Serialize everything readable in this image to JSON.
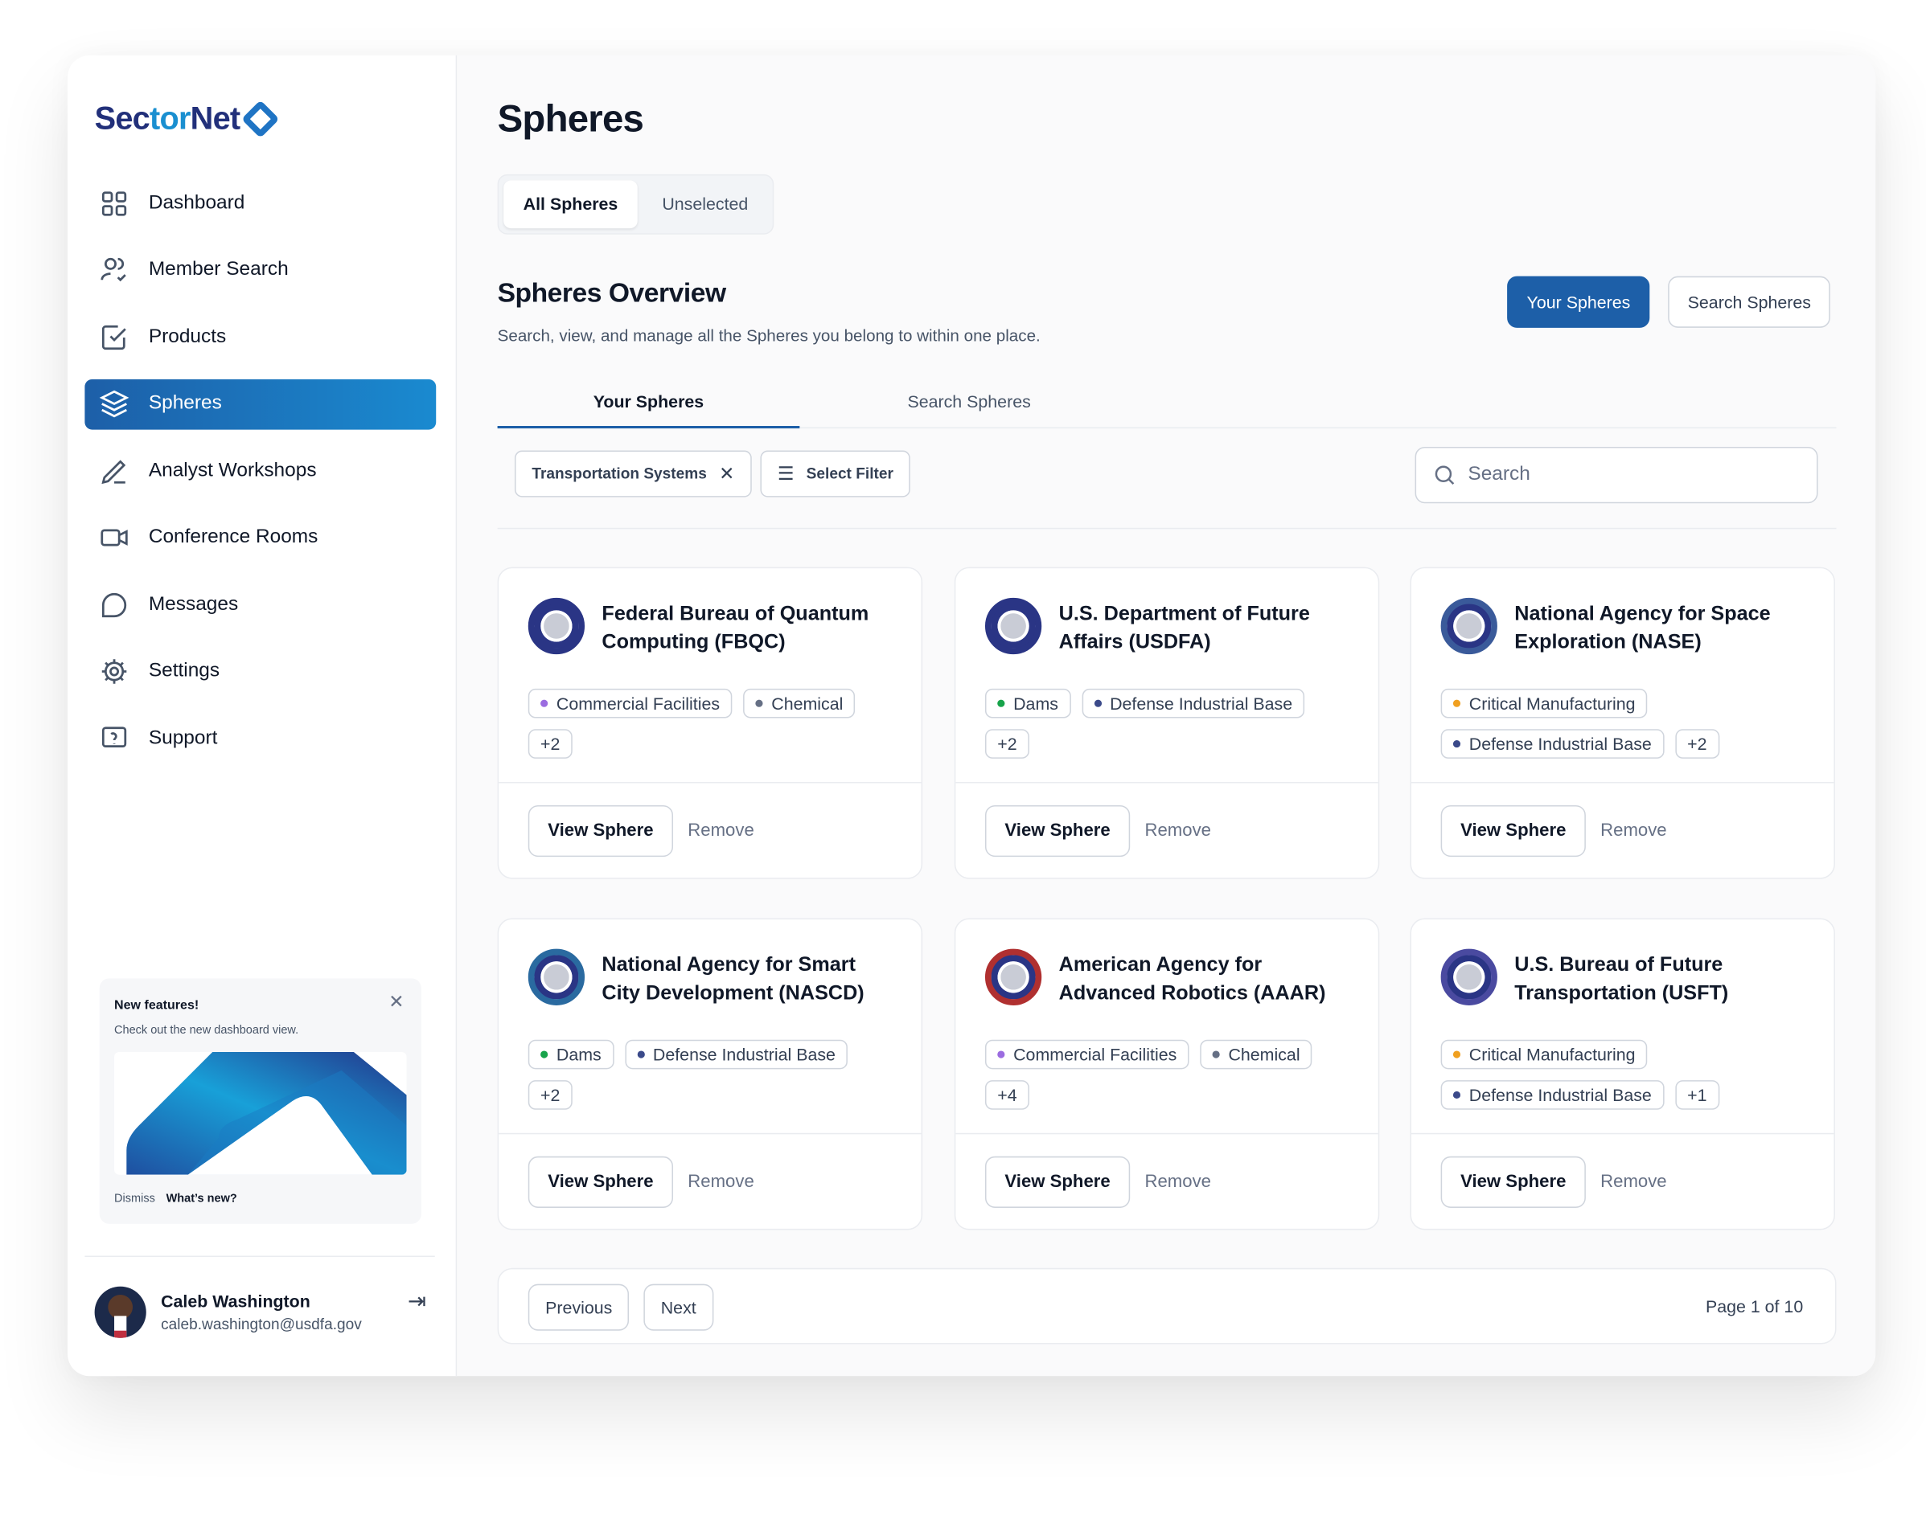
{
  "brand": {
    "name_part1": "Sec",
    "name_part2": "tor",
    "name_part3": "Net"
  },
  "sidebar": {
    "items": [
      {
        "label": "Dashboard",
        "icon": "grid-icon"
      },
      {
        "label": "Member Search",
        "icon": "users-check-icon"
      },
      {
        "label": "Products",
        "icon": "checkbox-icon"
      },
      {
        "label": "Spheres",
        "icon": "layers-icon",
        "active": true
      },
      {
        "label": "Analyst Workshops",
        "icon": "pen-icon"
      },
      {
        "label": "Conference Rooms",
        "icon": "video-icon"
      },
      {
        "label": "Messages",
        "icon": "chat-icon"
      },
      {
        "label": "Settings",
        "icon": "gear-icon"
      },
      {
        "label": "Support",
        "icon": "help-icon"
      }
    ]
  },
  "promo": {
    "title": "New features!",
    "text": "Check out the new dashboard view.",
    "dismiss": "Dismiss",
    "whats_new": "What’s new?"
  },
  "user": {
    "name": "Caleb Washington",
    "email": "caleb.washington@usdfa.gov"
  },
  "header": {
    "title": "Spheres",
    "segments": [
      "All Spheres",
      "Unselected"
    ]
  },
  "overview": {
    "title": "Spheres Overview",
    "subtitle": "Search, view, and manage all the Spheres you belong to within one place.",
    "your_spheres": "Your Spheres",
    "search_spheres": "Search Spheres"
  },
  "tabs": [
    "Your Spheres",
    "Search Spheres"
  ],
  "filters": {
    "active_filter": "Transportation Systems",
    "select_filter": "Select Filter",
    "search_placeholder": "Search"
  },
  "tag_colors": {
    "Commercial Facilities": "#9b6ce0",
    "Chemical": "#667085",
    "Dams": "#17a34a",
    "Defense Industrial Base": "#3b4a8a",
    "Critical Manufacturing": "#f0a020"
  },
  "cards": [
    {
      "title": "Federal Bureau of Quantum Computing (FBQC)",
      "tags": [
        "Commercial Facilities",
        "Chemical"
      ],
      "more": "+2"
    },
    {
      "title": "U.S. Department of Future Affairs (USDFA)",
      "tags": [
        "Dams",
        "Defense Industrial Base"
      ],
      "more": "+2"
    },
    {
      "title": "National Agency for Space Exploration (NASE)",
      "tags": [
        "Critical Manufacturing",
        "Defense Industrial Base"
      ],
      "more": "+2"
    },
    {
      "title": "National Agency for Smart City Development (NASCD)",
      "tags": [
        "Dams",
        "Defense Industrial Base"
      ],
      "more": "+2"
    },
    {
      "title": "American Agency for Advanced Robotics (AAAR)",
      "tags": [
        "Commercial Facilities",
        "Chemical"
      ],
      "more": "+4"
    },
    {
      "title": "U.S. Bureau of Future Transportation (USFT)",
      "tags": [
        "Critical Manufacturing",
        "Defense Industrial Base"
      ],
      "more": "+1"
    }
  ],
  "card_actions": {
    "view": "View Sphere",
    "remove": "Remove"
  },
  "pagination": {
    "previous": "Previous",
    "next": "Next",
    "info": "Page 1 of 10"
  }
}
